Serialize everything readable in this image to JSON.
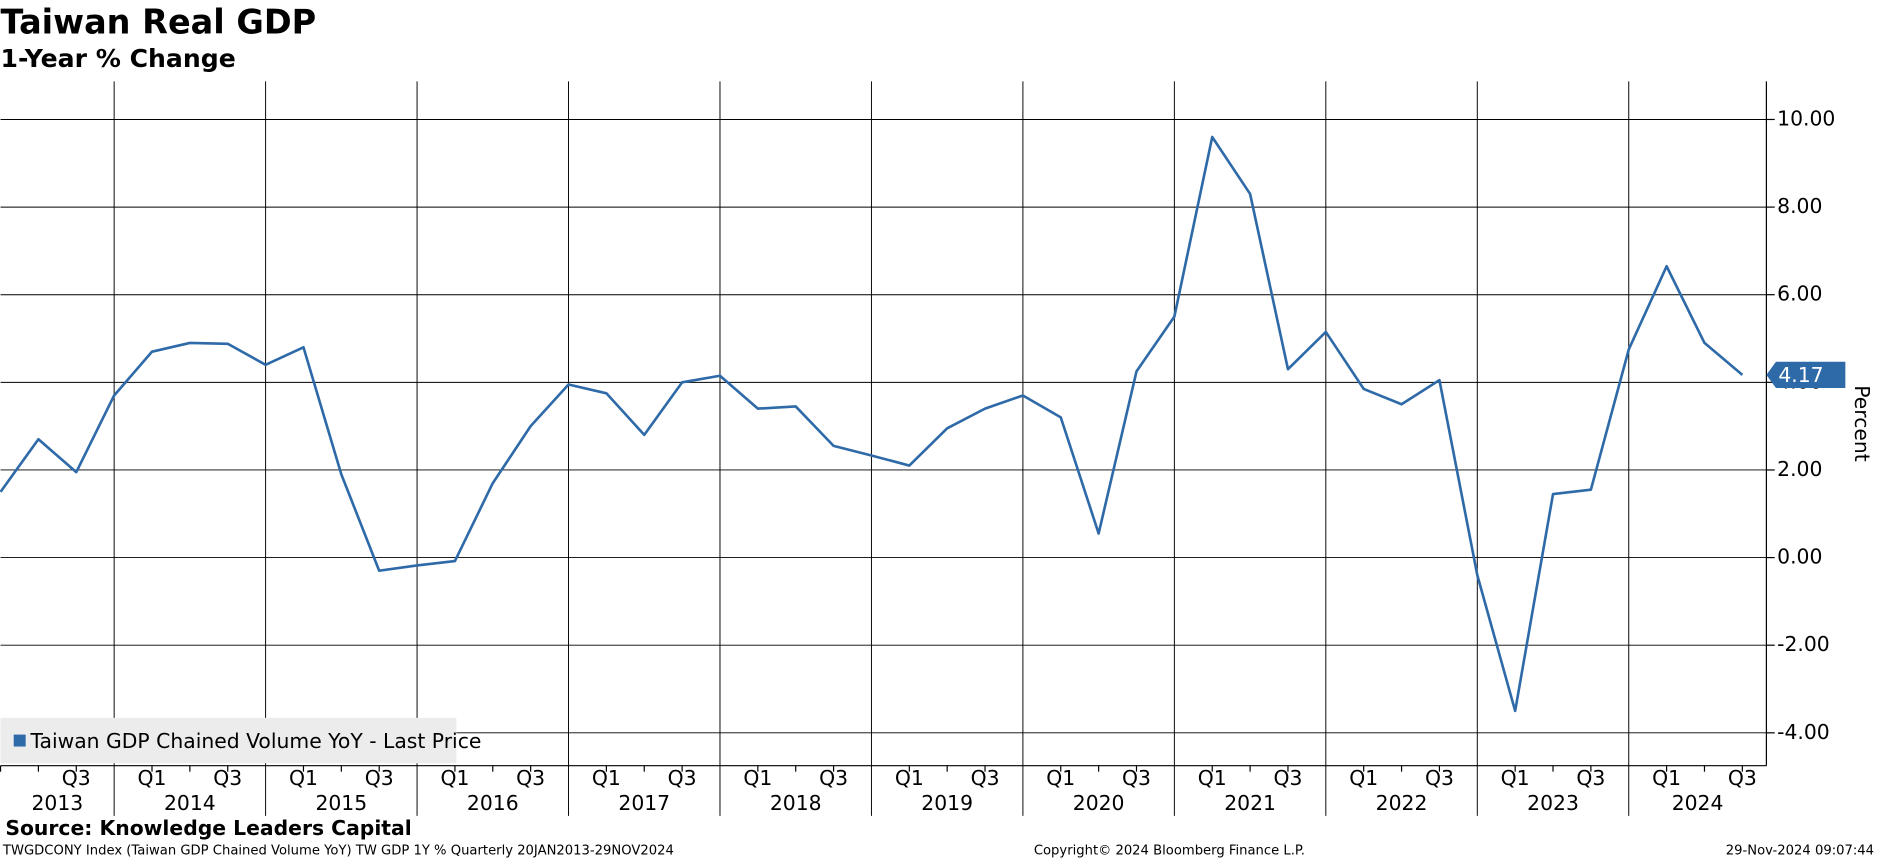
{
  "chart_data": {
    "type": "line",
    "title": "Taiwan Real GDP",
    "subtitle": "1-Year % Change",
    "y_axis_label": "Percent",
    "categories": [
      null,
      null,
      "Q3",
      null,
      "Q1",
      null,
      "Q3",
      null,
      "Q1",
      null,
      "Q3",
      null,
      "Q1",
      null,
      "Q3",
      null,
      "Q1",
      null,
      "Q3",
      null,
      "Q1",
      null,
      "Q3",
      null,
      "Q1",
      null,
      "Q3",
      null,
      "Q1",
      null,
      "Q3",
      null,
      "Q1",
      null,
      "Q3",
      null,
      "Q1",
      null,
      "Q3",
      null,
      "Q1",
      null,
      "Q3",
      null,
      "Q1",
      null,
      "Q3"
    ],
    "year_labels": [
      "2013",
      "2014",
      "2015",
      "2016",
      "2017",
      "2018",
      "2019",
      "2020",
      "2021",
      "2022",
      "2023",
      "2024"
    ],
    "series": [
      {
        "name": "Taiwan GDP Chained Volume YoY - Last Price",
        "color": "#2f6aa8",
        "values": [
          1.5,
          2.7,
          1.95,
          3.7,
          4.7,
          4.9,
          4.88,
          4.4,
          4.8,
          1.9,
          -0.3,
          -0.18,
          -0.08,
          1.7,
          3.0,
          3.95,
          3.75,
          2.8,
          4.0,
          4.15,
          3.4,
          3.45,
          2.55,
          2.33,
          2.1,
          2.95,
          3.4,
          3.7,
          3.2,
          0.55,
          4.25,
          5.5,
          9.6,
          8.3,
          4.3,
          5.15,
          3.85,
          3.5,
          4.05,
          -0.4,
          -3.5,
          1.45,
          1.55,
          4.75,
          6.65,
          4.9,
          4.17
        ]
      }
    ],
    "ylim": [
      -4.75,
      10.87
    ],
    "yticks": [
      {
        "value": -4,
        "label": "-4.00"
      },
      {
        "value": -2,
        "label": "-2.00"
      },
      {
        "value": 0,
        "label": "0.00"
      },
      {
        "value": 2,
        "label": "2.00"
      },
      {
        "value": 4,
        "label": "4.00"
      },
      {
        "value": 6,
        "label": "6.00"
      },
      {
        "value": 8,
        "label": "8.00"
      },
      {
        "value": 10,
        "label": "10.00"
      }
    ],
    "grid": true,
    "legend_position": "lower-left",
    "source": "Source: Knowledge Leaders Capital",
    "footer_left": "TWGDCONY Index (Taiwan GDP Chained Volume YoY) TW GDP 1Y %  Quarterly 20JAN2013-29NOV2024",
    "footer_center": "Copyright© 2024 Bloomberg Finance L.P.",
    "footer_right": "29-Nov-2024 09:07:44"
  }
}
